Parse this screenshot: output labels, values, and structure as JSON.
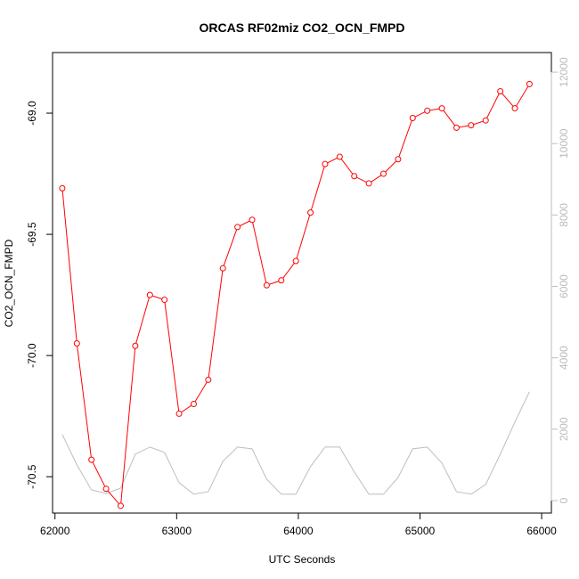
{
  "chart_data": {
    "type": "line",
    "title": "ORCAS RF02miz CO2_OCN_FMPD",
    "xlabel": "UTC Seconds",
    "ylabel": "CO2_OCN_FMPD",
    "xlim": [
      61980,
      66080
    ],
    "ylim": [
      -70.65,
      -68.75
    ],
    "y2lim": [
      -350,
      12550
    ],
    "x_ticks": [
      62000,
      63000,
      64000,
      65000,
      66000
    ],
    "y_ticks": [
      -69.0,
      -69.5,
      -70.0,
      -70.5
    ],
    "y2_ticks": [
      0,
      2000,
      4000,
      6000,
      8000,
      10000,
      12000
    ],
    "grid": false,
    "colors": {
      "primary": "#ff0000",
      "secondary": "#bebebe"
    },
    "series": [
      {
        "role": "primary",
        "x": [
          62060,
          62180,
          62300,
          62420,
          62540,
          62660,
          62780,
          62900,
          63020,
          63140,
          63260,
          63380,
          63500,
          63620,
          63740,
          63860,
          63980,
          64100,
          64220,
          64340,
          64460,
          64580,
          64700,
          64820,
          64940,
          65060,
          65180,
          65300,
          65420,
          65540,
          65660,
          65780,
          65900
        ],
        "values": [
          -69.31,
          -69.95,
          -70.43,
          -70.55,
          -70.62,
          -69.96,
          -69.75,
          -69.77,
          -70.24,
          -70.2,
          -70.1,
          -69.64,
          -69.47,
          -69.44,
          -69.71,
          -69.69,
          -69.61,
          -69.41,
          -69.21,
          -69.18,
          -69.26,
          -69.29,
          -69.25,
          -69.19,
          -69.02,
          -68.99,
          -68.98,
          -69.06,
          -69.05,
          -69.03,
          -68.91,
          -68.98,
          -68.88
        ]
      },
      {
        "role": "secondary",
        "x": [
          62060,
          62180,
          62300,
          62420,
          62540,
          62660,
          62780,
          62900,
          63020,
          63140,
          63260,
          63380,
          63500,
          63620,
          63740,
          63860,
          63980,
          64100,
          64220,
          64340,
          64460,
          64580,
          64700,
          64820,
          64940,
          65060,
          65180,
          65300,
          65420,
          65540,
          65660,
          65780,
          65900
        ],
        "values": [
          1850,
          1000,
          300,
          200,
          350,
          1300,
          1500,
          1350,
          500,
          180,
          250,
          1100,
          1500,
          1450,
          600,
          180,
          180,
          950,
          1500,
          1500,
          800,
          180,
          180,
          650,
          1450,
          1500,
          1050,
          250,
          180,
          450,
          1300,
          2200,
          3050
        ]
      }
    ]
  }
}
